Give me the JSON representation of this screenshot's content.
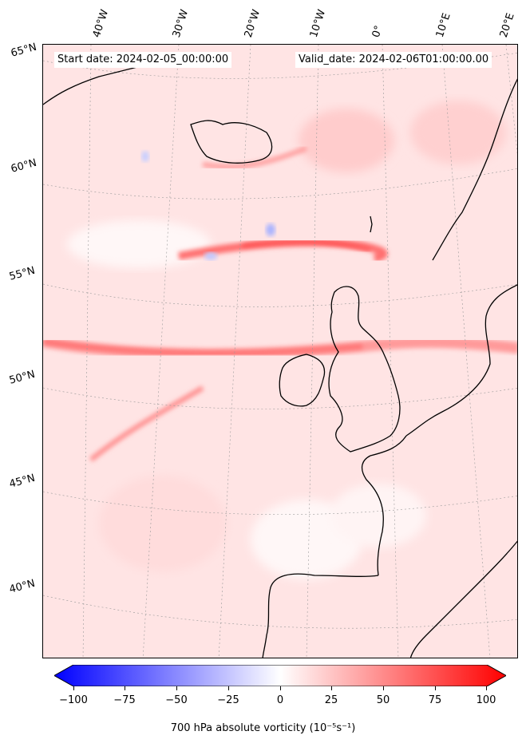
{
  "header": {
    "start_date": "Start date: 2024-02-05_00:00:00",
    "valid_date": "Valid_date: 2024-02-06T01:00:00.00"
  },
  "longitude_labels": [
    "40°W",
    "30°W",
    "20°W",
    "10°W",
    "0°",
    "10°E",
    "20°E"
  ],
  "latitude_labels": [
    "65°N",
    "60°N",
    "55°N",
    "50°N",
    "45°N",
    "40°N"
  ],
  "colorbar": {
    "ticks": [
      "−100",
      "−75",
      "−50",
      "−25",
      "0",
      "25",
      "50",
      "75",
      "100"
    ],
    "label": "700 hPa absolute vorticity (10⁻⁵s⁻¹)",
    "min_color": "#0000ff",
    "mid_color": "#ffffff",
    "max_color": "#ff0000"
  },
  "map": {
    "background_color": "#ffeaea",
    "coastline_color": "#000000"
  }
}
